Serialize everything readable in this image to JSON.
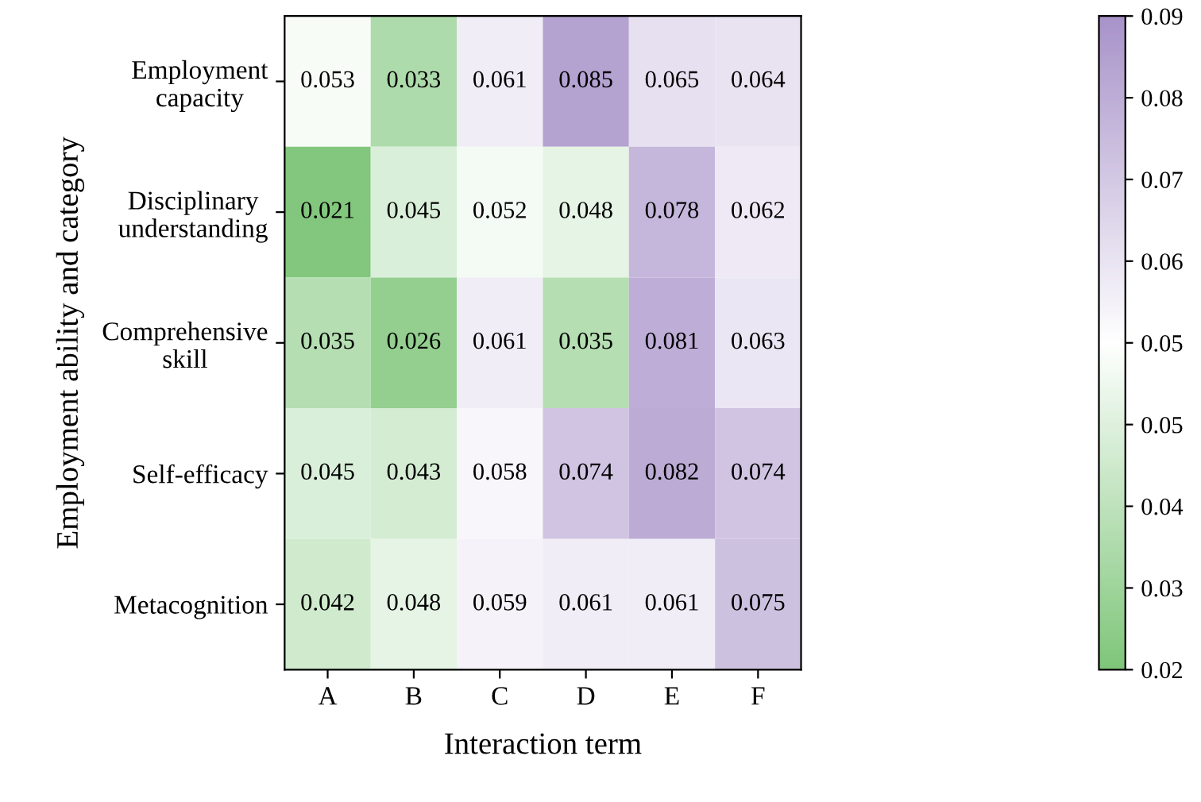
{
  "chart_data": {
    "type": "heatmap",
    "xlabel": "Interaction term",
    "ylabel": "Employment ability and category",
    "categories": [
      "A",
      "B",
      "C",
      "D",
      "E",
      "F"
    ],
    "y_categories": [
      "Employment\ncapacity",
      "Disciplinary\nunderstanding",
      "Comprehensive\nskill",
      "Self-efficacy",
      "Metacognition"
    ],
    "cells": [
      [
        0.053,
        0.033,
        0.061,
        0.085,
        0.065,
        0.064
      ],
      [
        0.021,
        0.045,
        0.052,
        0.048,
        0.078,
        0.062
      ],
      [
        0.035,
        0.026,
        0.061,
        0.035,
        0.081,
        0.063
      ],
      [
        0.045,
        0.043,
        0.058,
        0.074,
        0.082,
        0.074
      ],
      [
        0.042,
        0.048,
        0.059,
        0.061,
        0.061,
        0.075
      ]
    ],
    "colors": [
      "#7fc67a",
      "#ffffff",
      "#a893c9"
    ],
    "clim": [
      0.02,
      0.09
    ],
    "cticks": [
      {
        "value": 0.02,
        "label": "0.02"
      },
      {
        "value": 0.02875,
        "label": "0.03"
      },
      {
        "value": 0.0375,
        "label": "0.04"
      },
      {
        "value": 0.04625,
        "label": "0.05"
      },
      {
        "value": 0.055,
        "label": "0.05"
      },
      {
        "value": 0.06375,
        "label": "0.06"
      },
      {
        "value": 0.0725,
        "label": "0.07"
      },
      {
        "value": 0.08125,
        "label": "0.08"
      },
      {
        "value": 0.09,
        "label": "0.09"
      }
    ],
    "data_labels": true
  }
}
